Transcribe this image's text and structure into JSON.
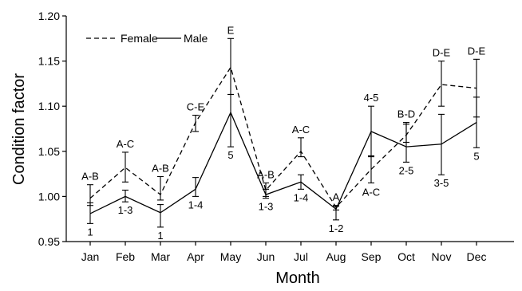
{
  "chart_data": {
    "type": "line",
    "xlabel": "Month",
    "ylabel": "Condition factor",
    "categories": [
      "Jan",
      "Feb",
      "Mar",
      "Apr",
      "May",
      "Jun",
      "Jul",
      "Aug",
      "Sep",
      "Oct",
      "Nov",
      "Dec"
    ],
    "ylim": [
      0.95,
      1.2
    ],
    "yticks": [
      "0.95",
      "1.00",
      "1.05",
      "1.10",
      "1.15",
      "1.20"
    ],
    "grid": false,
    "legend_position": "top-left",
    "series": [
      {
        "name": "Female",
        "line_style": "dashed",
        "values": [
          0.998,
          1.032,
          1.002,
          1.082,
          1.143,
          1.007,
          1.05,
          0.988,
          1.03,
          1.068,
          1.124,
          1.12
        ],
        "err_high": [
          1.013,
          1.049,
          1.022,
          1.09,
          1.175,
          1.015,
          1.065,
          0.99,
          1.045,
          1.08,
          1.15,
          1.152
        ],
        "err_low": [
          0.99,
          1.016,
          0.996,
          1.072,
          1.113,
          1.0,
          1.044,
          0.985,
          1.015,
          1.06,
          1.1,
          1.088
        ],
        "group_labels": [
          "A-B",
          "A-C",
          "A-B",
          "C-E",
          "E",
          "A-B",
          "A-C",
          "A",
          "A-C",
          "B-D",
          "D-E",
          "D-E"
        ]
      },
      {
        "name": "Male",
        "line_style": "solid",
        "values": [
          0.981,
          1.0,
          0.982,
          1.008,
          1.093,
          1.002,
          1.016,
          0.986,
          1.072,
          1.055,
          1.058,
          1.082
        ],
        "err_high": [
          0.993,
          1.007,
          0.991,
          1.021,
          1.113,
          1.008,
          1.024,
          0.989,
          1.1,
          1.082,
          1.091,
          1.11
        ],
        "err_low": [
          0.97,
          0.994,
          0.966,
          1.0,
          1.055,
          0.998,
          1.008,
          0.974,
          1.044,
          1.038,
          1.024,
          1.054
        ],
        "group_labels": [
          "1",
          "1-3",
          "1",
          "1-4",
          "5",
          "1-3",
          "1-4",
          "1-2",
          "4-5",
          "2-5",
          "3-5",
          "5"
        ]
      }
    ]
  }
}
